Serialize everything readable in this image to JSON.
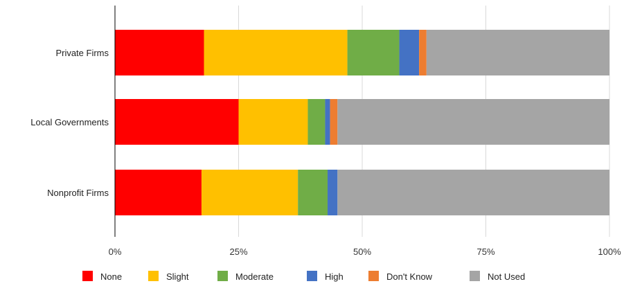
{
  "chart_data": {
    "type": "bar",
    "orientation": "horizontal",
    "stacked": true,
    "normalized": true,
    "categories": [
      "Private Firms",
      "Local Governments",
      "Nonprofit Firms"
    ],
    "xlim": [
      0,
      100
    ],
    "xticks": [
      "0%",
      "25%",
      "50%",
      "75%",
      "100%"
    ],
    "grid": true,
    "legend_position": "bottom",
    "series": [
      {
        "name": "None",
        "color": "#ff0000",
        "values": [
          18,
          25,
          17.5
        ]
      },
      {
        "name": "Slight",
        "color": "#ffc000",
        "values": [
          29,
          14,
          19.5
        ]
      },
      {
        "name": "Moderate",
        "color": "#70ad47",
        "values": [
          10.5,
          3.5,
          6
        ]
      },
      {
        "name": "High",
        "color": "#4472c4",
        "values": [
          4,
          1,
          2
        ]
      },
      {
        "name": "Don't Know",
        "color": "#ed7d31",
        "values": [
          1.5,
          1.5,
          0
        ]
      },
      {
        "name": "Not Used",
        "color": "#a5a5a5",
        "values": [
          37,
          55,
          55
        ]
      }
    ]
  }
}
